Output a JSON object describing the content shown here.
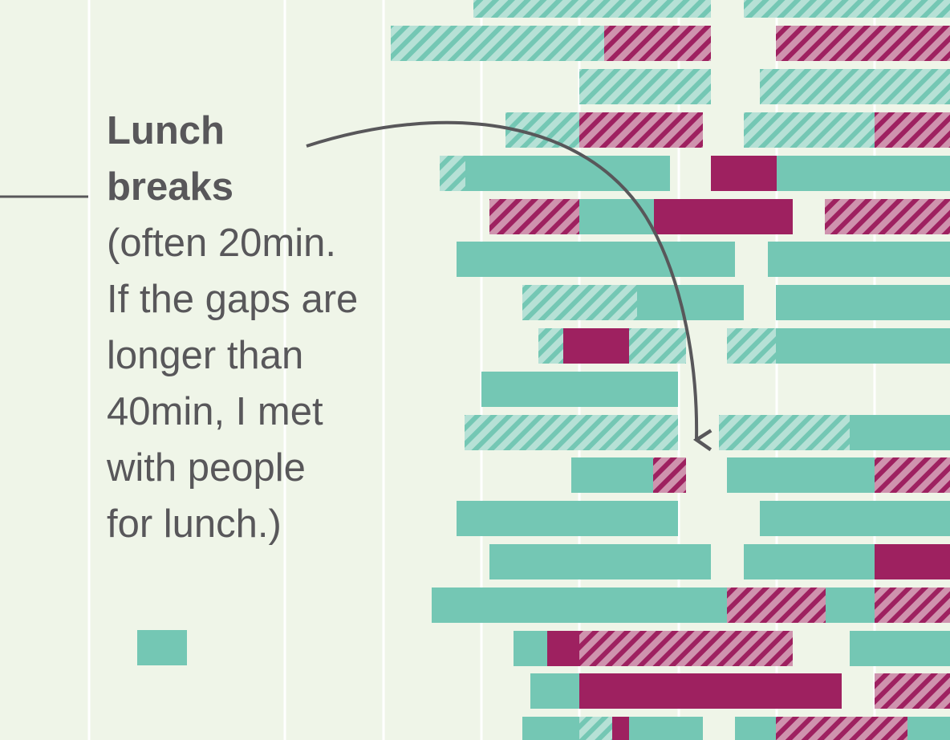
{
  "annotation": {
    "title": "Lunch\nbreaks",
    "body": "(often 20min.\nIf the gaps are\nlonger than\n40min, I met\nwith people\nfor lunch.)"
  },
  "colors": {
    "background": "#eff5e8",
    "grid": "#ffffff",
    "teal": "#74c7b4",
    "magenta": "#9e2160",
    "text": "#58575a"
  },
  "legend": [
    {
      "name": "",
      "color": "#74c7b4"
    }
  ],
  "chart_data": {
    "type": "timeline",
    "x_unit": "minutes (time of day, cropped)",
    "grid": true,
    "segment_kinds": [
      "teal",
      "teal-hatched",
      "magenta",
      "magenta-hatched"
    ],
    "rows": [
      {
        "segments": [
          {
            "kind": "teal-hatched",
            "start": 0,
            "end": 0
          }
        ]
      }
    ]
  }
}
